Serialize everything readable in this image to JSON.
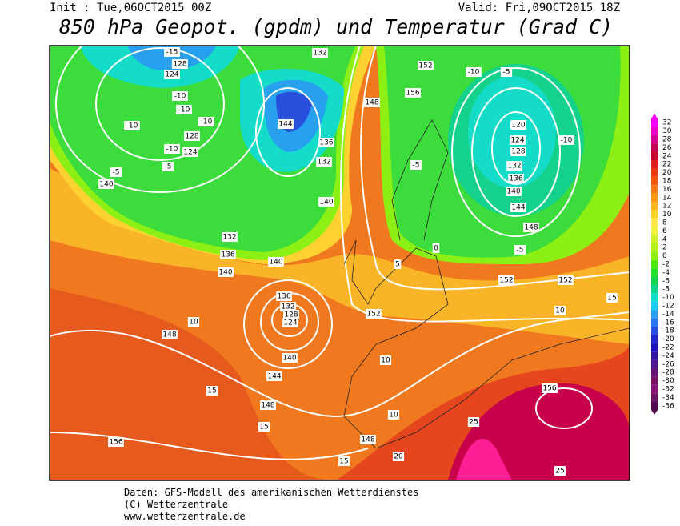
{
  "header": {
    "init": "Init : Tue,06OCT2015 00Z",
    "valid": "Valid: Fri,09OCT2015 18Z",
    "title": "850 hPa Geopot. (gpdm) und Temperatur (Grad C)"
  },
  "colorbar": {
    "labels": [
      32,
      30,
      28,
      26,
      24,
      22,
      20,
      18,
      16,
      14,
      12,
      10,
      8,
      6,
      4,
      2,
      0,
      -2,
      -4,
      -6,
      -8,
      -10,
      -12,
      -14,
      -16,
      -18,
      -20,
      -22,
      -24,
      -26,
      -28,
      -30,
      -32,
      -34,
      -36
    ],
    "colors": [
      "#ff00ff",
      "#e600c8",
      "#d2008c",
      "#be0050",
      "#c8002d",
      "#dc1e1e",
      "#e63c14",
      "#f05a0a",
      "#f57814",
      "#fa961e",
      "#fab428",
      "#ffd232",
      "#ffe650",
      "#f0f046",
      "#d2f032",
      "#b4f01e",
      "#8cf014",
      "#50e614",
      "#28dc28",
      "#14d250",
      "#14d28c",
      "#14dcc8",
      "#1ec8f0",
      "#28a0f0",
      "#2878f0",
      "#2850dc",
      "#1e28c8",
      "#1e14b4",
      "#3214a0",
      "#50148c",
      "#641478",
      "#781464",
      "#8c1478",
      "#6e1464",
      "#500a50"
    ]
  },
  "map": {
    "labels": [
      -15,
      128,
      124,
      -10,
      -10,
      -10,
      -10,
      128,
      124,
      -10,
      -5,
      -5,
      140,
      132,
      136,
      140,
      140,
      136,
      132,
      128,
      124,
      140,
      144,
      148,
      148,
      10,
      15,
      156,
      148,
      20,
      25,
      25,
      156,
      152,
      152,
      152,
      148,
      144,
      140,
      136,
      132,
      128,
      124,
      120,
      -10,
      -10,
      -5,
      152,
      156,
      132,
      132,
      136,
      140,
      144,
      148,
      -5,
      -5,
      0,
      5,
      10,
      15,
      10,
      10,
      15,
      15
    ]
  },
  "footer": {
    "line1": "Daten: GFS-Modell des amerikanischen Wetterdienstes",
    "line2": "(C) Wetterzentrale",
    "line3": "www.wetterzentrale.de"
  }
}
